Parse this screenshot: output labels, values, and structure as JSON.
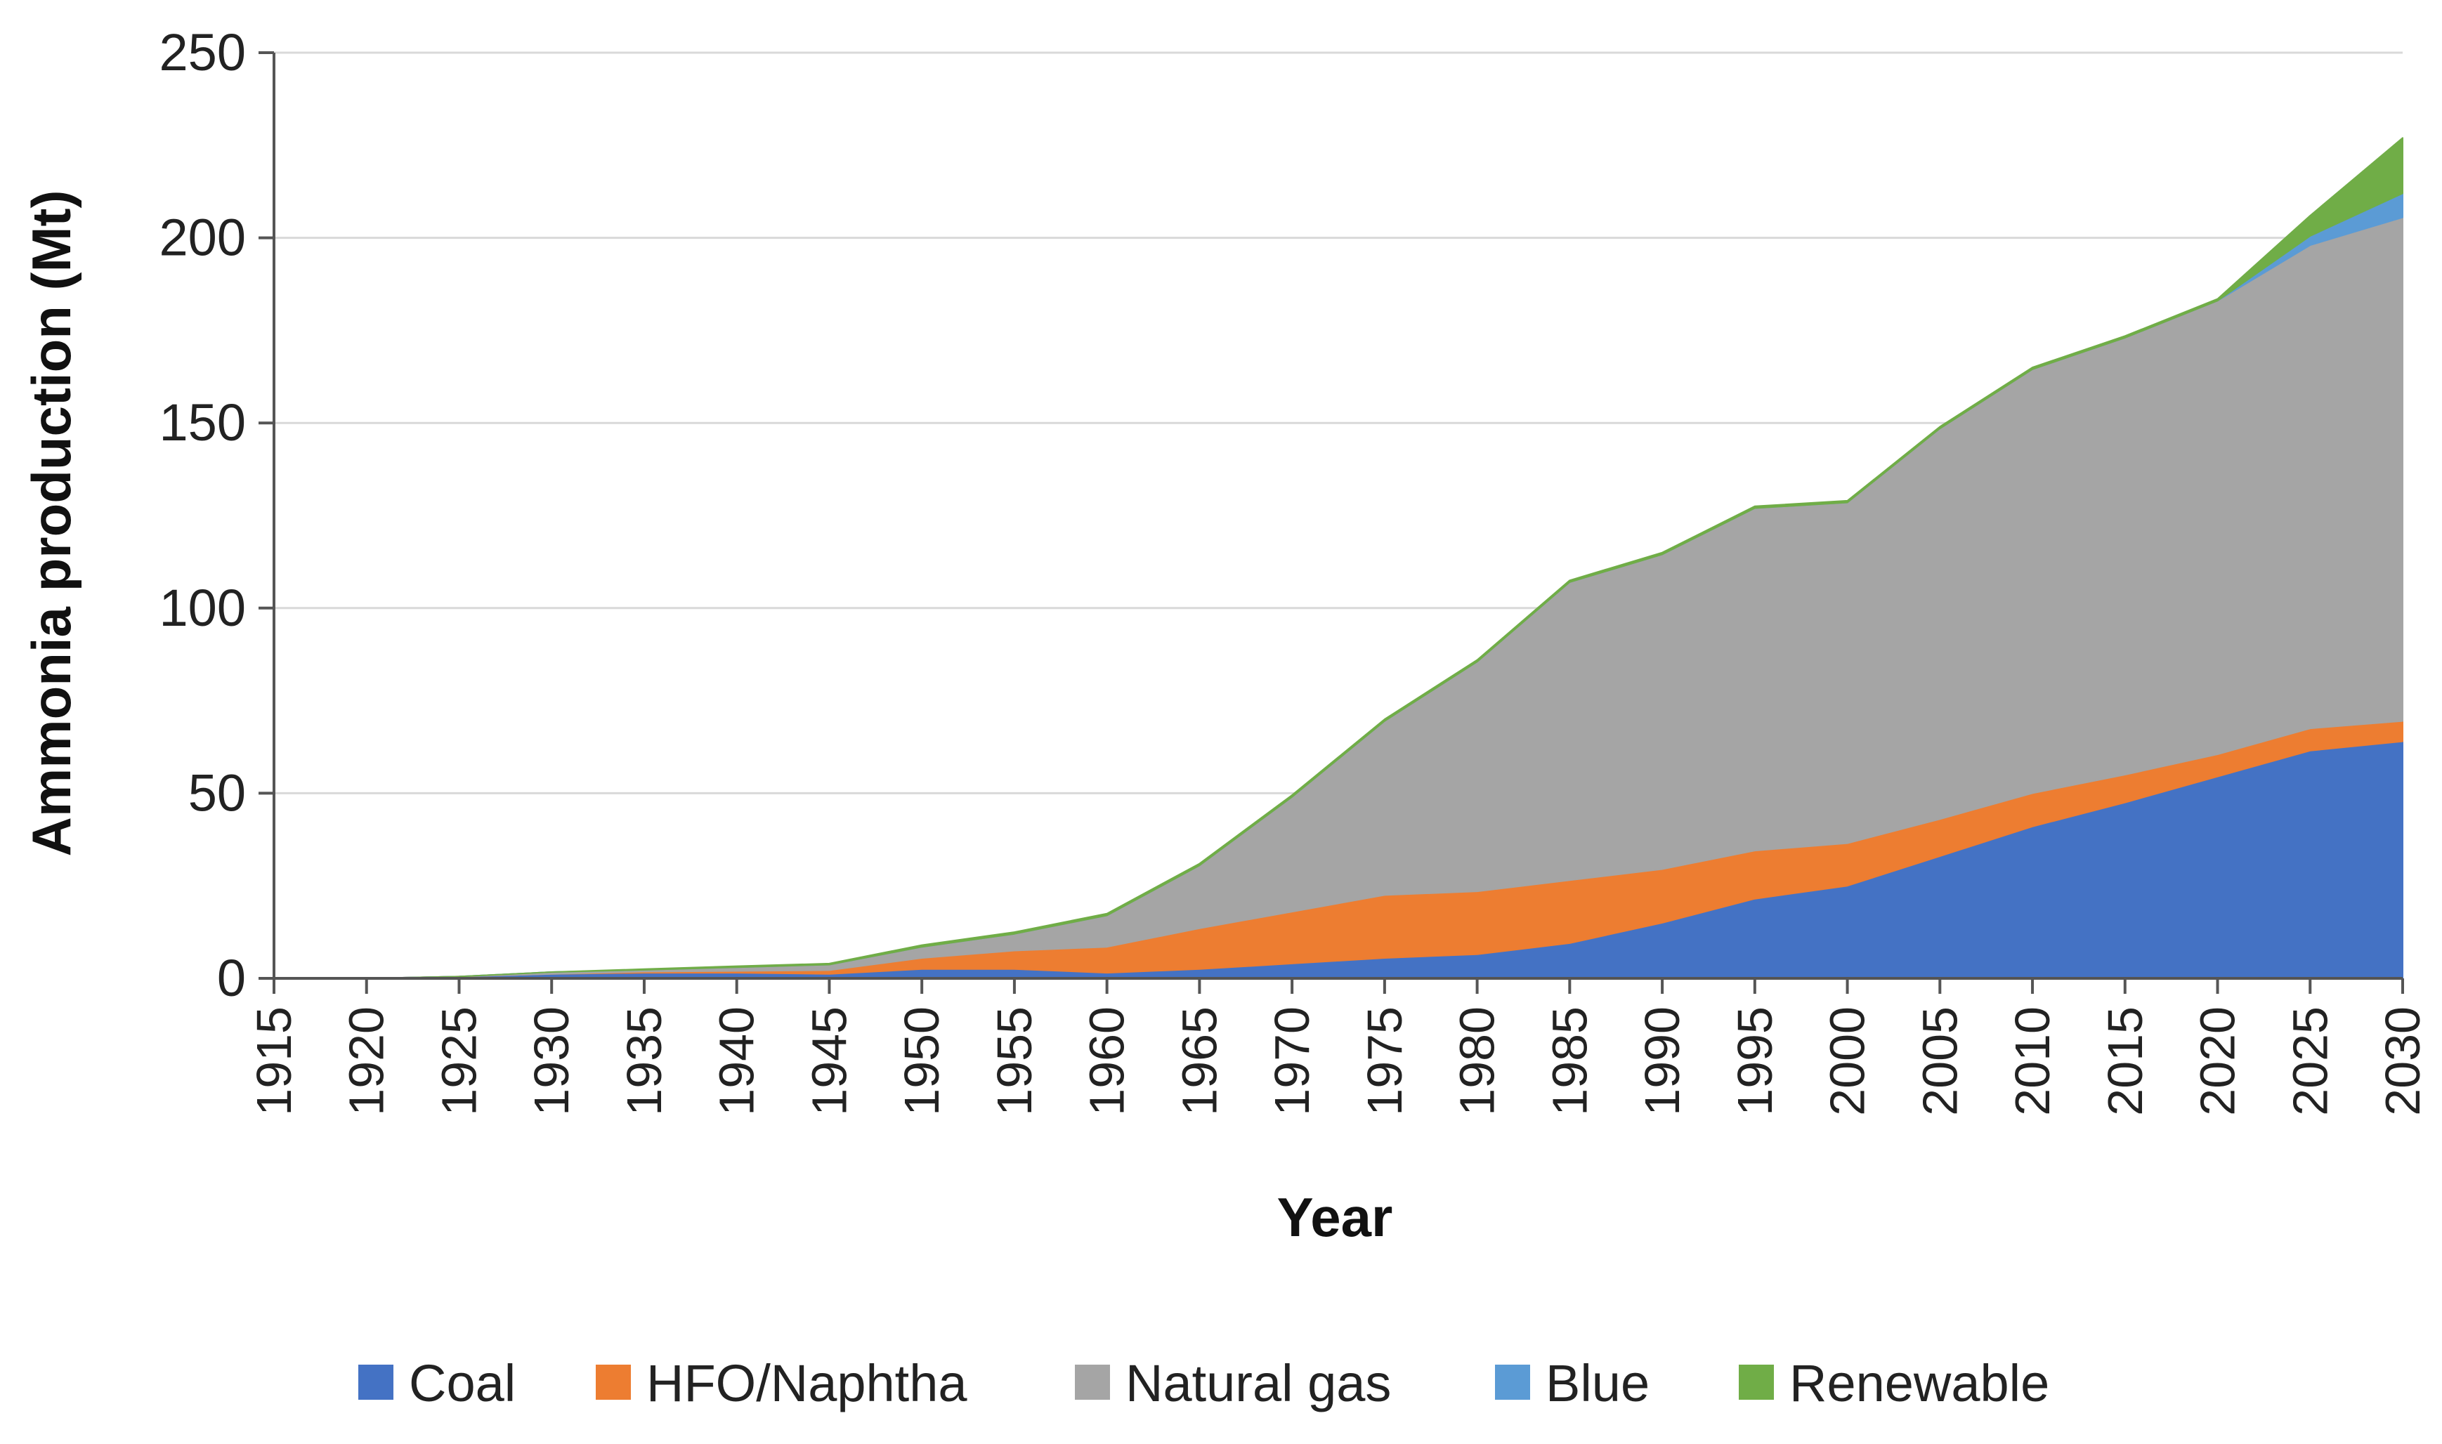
{
  "chart_data": {
    "type": "area",
    "stacked": true,
    "title": "",
    "xlabel": "Year",
    "ylabel": "Ammonia production (Mt)",
    "ylim": [
      0,
      250
    ],
    "yticks": [
      "0",
      "50",
      "100",
      "150",
      "200",
      "250"
    ],
    "grid": true,
    "legend_position": "bottom",
    "x": [
      1915,
      1920,
      1925,
      1930,
      1935,
      1940,
      1945,
      1950,
      1955,
      1960,
      1965,
      1970,
      1975,
      1980,
      1985,
      1990,
      1995,
      2000,
      2005,
      2010,
      2015,
      2020,
      2025,
      2030
    ],
    "xtick_labels": [
      "1915",
      "1920",
      "1925",
      "1930",
      "1935",
      "1940",
      "1945",
      "1950",
      "1955",
      "1960",
      "1965",
      "1970",
      "1975",
      "1980",
      "1985",
      "1990",
      "1995",
      "2000",
      "2005",
      "2010",
      "2015",
      "2020",
      "2025",
      "2030"
    ],
    "series": [
      {
        "name": "Coal",
        "color": "#4472C4",
        "values": [
          0,
          0,
          0.5,
          1.2,
          1.5,
          1.5,
          1.2,
          2.5,
          2.5,
          1.5,
          2.5,
          4,
          5.5,
          6.5,
          9.5,
          15,
          21.5,
          25,
          33,
          41,
          47.5,
          54.5,
          61.5,
          64
        ]
      },
      {
        "name": "HFO/Naphtha",
        "color": "#ED7D31",
        "values": [
          0,
          0,
          0,
          0,
          0.3,
          0.5,
          1,
          3,
          5,
          7,
          11,
          14,
          17,
          17,
          17,
          14.5,
          13,
          11.5,
          10,
          9,
          7.5,
          6,
          6,
          5.5
        ]
      },
      {
        "name": "Natural gas",
        "color": "#A5A5A5",
        "values": [
          0,
          0,
          0,
          0.5,
          0.5,
          1,
          1.5,
          3,
          4.5,
          8.5,
          17,
          31,
          47,
          62,
          80.5,
          85,
          92.5,
          92,
          105.5,
          114.5,
          118,
          122.5,
          130.5,
          136
        ]
      },
      {
        "name": "Blue",
        "color": "#5B9BD5",
        "values": [
          0,
          0,
          0,
          0,
          0,
          0,
          0,
          0,
          0,
          0,
          0,
          0,
          0,
          0,
          0,
          0,
          0,
          0,
          0,
          0,
          0,
          0,
          2.5,
          6.5
        ]
      },
      {
        "name": "Renewable",
        "color": "#70AD47",
        "values": [
          0,
          0,
          0,
          0,
          0.2,
          0.3,
          0.3,
          0.5,
          0.5,
          0.5,
          0.5,
          0.5,
          0.5,
          0.5,
          0.5,
          0.5,
          0.5,
          0.5,
          0.5,
          0.5,
          0.5,
          0.5,
          5.5,
          15
        ]
      }
    ]
  }
}
